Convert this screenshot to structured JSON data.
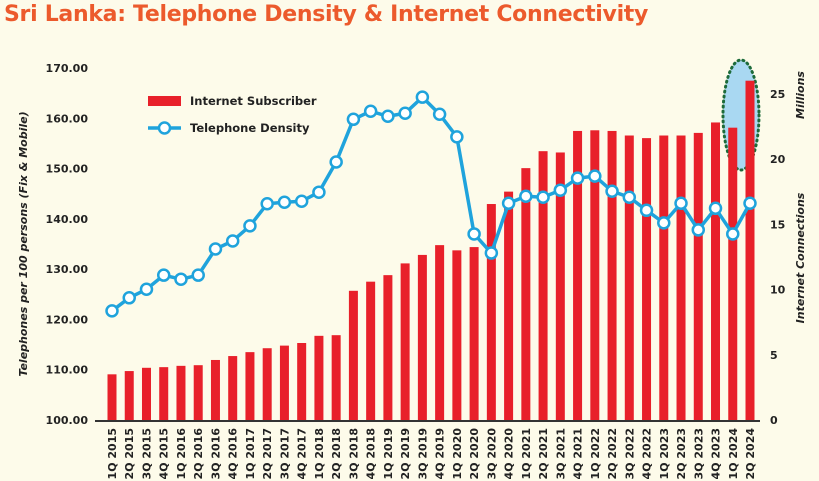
{
  "chart_data": {
    "type": "bar+line",
    "title": "Sri Lanka: Telephone Density & Internet Connectivity",
    "categories": [
      "1Q 2015",
      "2Q 2015",
      "3Q 2015",
      "4Q 2015",
      "1Q 2016",
      "2Q 2016",
      "3Q 2016",
      "4Q 2016",
      "1Q 2017",
      "2Q 2017",
      "3Q 2017",
      "4Q 2017",
      "1Q 2018",
      "2Q 2018",
      "3Q 2018",
      "4Q 2018",
      "1Q 2019",
      "2Q 2019",
      "3Q 2019",
      "4Q 2019",
      "1Q 2020",
      "2Q 2020",
      "3Q 2020",
      "4Q 2020",
      "1Q 2021",
      "2Q 2021",
      "3Q 2021",
      "4Q 2021",
      "1Q 2022",
      "2Q 2022",
      "3Q 2022",
      "4Q 2022",
      "1Q 2023",
      "2Q 2023",
      "3Q 2023",
      "4Q 2023",
      "1Q 2024",
      "2Q 2024"
    ],
    "series": [
      {
        "name": "Internet Subscriber",
        "type": "bar",
        "axis": "right",
        "color": "#e8202a",
        "values": [
          3.5,
          3.75,
          4.0,
          4.05,
          4.15,
          4.2,
          4.6,
          4.9,
          5.2,
          5.5,
          5.7,
          5.9,
          6.45,
          6.5,
          9.9,
          10.6,
          11.1,
          12.0,
          12.65,
          13.4,
          13.0,
          13.25,
          16.55,
          17.5,
          19.3,
          20.6,
          20.5,
          22.15,
          22.2,
          22.15,
          21.8,
          21.6,
          21.8,
          21.8,
          22.0,
          22.8,
          22.4,
          26.0
        ]
      },
      {
        "name": "Telephone Density",
        "type": "line",
        "axis": "left",
        "color": "#1fa3dc",
        "values": [
          121.7,
          124.3,
          126.0,
          128.8,
          128.0,
          128.8,
          134.0,
          135.6,
          138.6,
          143.0,
          143.3,
          143.5,
          145.3,
          151.3,
          159.8,
          161.4,
          160.4,
          161.0,
          164.2,
          160.8,
          156.3,
          137.0,
          133.2,
          143.1,
          144.5,
          144.3,
          145.7,
          148.1,
          148.5,
          145.5,
          144.3,
          141.7,
          139.2,
          143.1,
          137.8,
          142.1,
          137.0,
          143.1
        ]
      }
    ],
    "ylabel": "Telephones per 100 persons (Fix & Mobile)",
    "ylim": [
      100,
      170
    ],
    "yticks": [
      "100.00",
      "110.00",
      "120.00",
      "130.00",
      "140.00",
      "150.00",
      "160.00",
      "170.00"
    ],
    "y2label": "Internet Connections",
    "y2unit": "Millions",
    "y2lim": [
      0,
      27
    ],
    "y2ticks": [
      "0",
      "5",
      "10",
      "15",
      "20",
      "25"
    ],
    "legend": "top-left",
    "grid": false,
    "highlight": "last two bars circled"
  }
}
